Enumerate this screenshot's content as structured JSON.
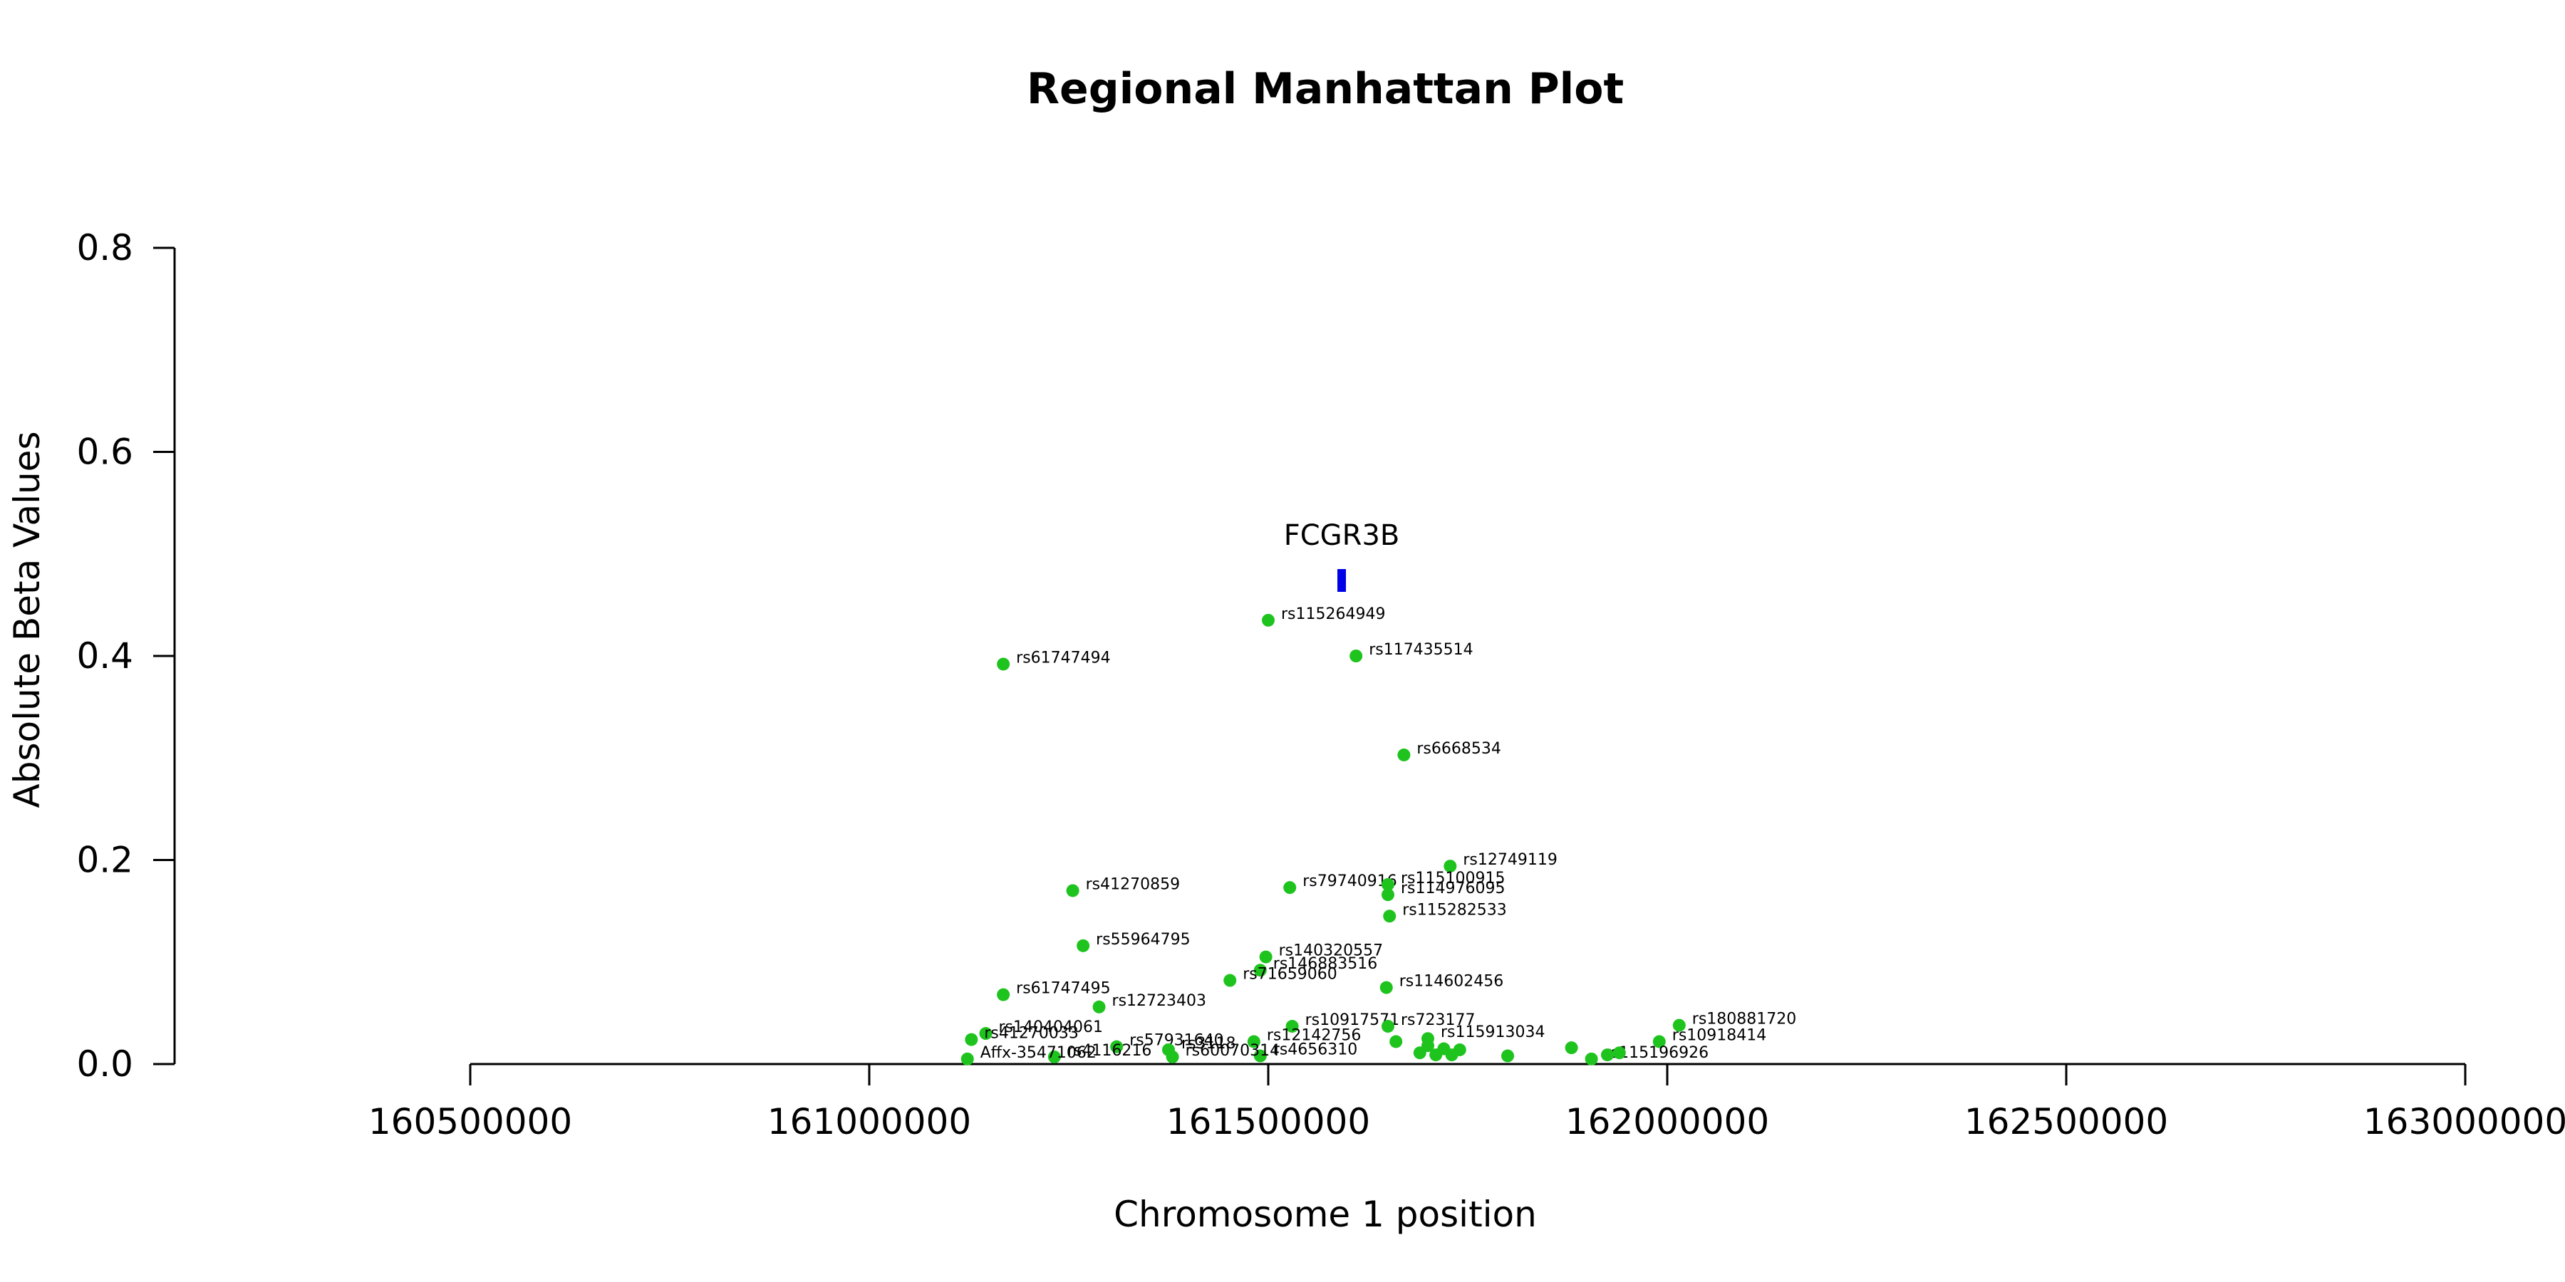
{
  "chart_data": {
    "type": "scatter",
    "title": "Regional Manhattan Plot",
    "xlabel": "Chromosome 1 position",
    "ylabel": "Absolute Beta Values",
    "xlim": [
      160500000,
      163000000
    ],
    "ylim": [
      0,
      0.8
    ],
    "x_ticks": [
      160500000,
      161000000,
      161500000,
      162000000,
      162500000,
      163000000
    ],
    "x_tick_labels": [
      "160500000",
      "161000000",
      "161500000",
      "162000000",
      "162500000",
      "163000000"
    ],
    "y_ticks": [
      0,
      0.2,
      0.4,
      0.6,
      0.8
    ],
    "y_tick_labels": [
      "0.0",
      "0.2",
      "0.4",
      "0.6",
      "0.8"
    ],
    "point_color": "#1ec31e",
    "gene_color": "#0000e6",
    "genes": [
      {
        "name": "FCGR3B",
        "x": 161592000,
        "y": 0.474
      }
    ],
    "points": [
      {
        "label": "rs115264949",
        "x": 161500000,
        "y": 0.435
      },
      {
        "label": "rs61747494",
        "x": 161168000,
        "y": 0.392
      },
      {
        "label": "rs117435514",
        "x": 161610000,
        "y": 0.4
      },
      {
        "label": "rs6668534",
        "x": 161670000,
        "y": 0.303
      },
      {
        "label": "rs12749119",
        "x": 161728000,
        "y": 0.194
      },
      {
        "label": "rs41270859",
        "x": 161255000,
        "y": 0.17
      },
      {
        "label": "rs79740916",
        "x": 161527000,
        "y": 0.173
      },
      {
        "label": "rs115100915",
        "x": 161650000,
        "y": 0.176
      },
      {
        "label": "rs114976095",
        "x": 161650000,
        "y": 0.166
      },
      {
        "label": "rs115282533",
        "x": 161652000,
        "y": 0.145
      },
      {
        "label": "rs55964795",
        "x": 161268000,
        "y": 0.116
      },
      {
        "label": "rs140320557",
        "x": 161497000,
        "y": 0.105
      },
      {
        "label": "rs146883516",
        "x": 161490000,
        "y": 0.092
      },
      {
        "label": "rs71659060",
        "x": 161452000,
        "y": 0.082
      },
      {
        "label": "rs114602456",
        "x": 161648000,
        "y": 0.075
      },
      {
        "label": "rs61747495",
        "x": 161168000,
        "y": 0.068
      },
      {
        "label": "rs12723403",
        "x": 161288000,
        "y": 0.056
      },
      {
        "label": "rs180881720",
        "x": 162015000,
        "y": 0.038
      },
      {
        "label": "rs10917571",
        "x": 161530000,
        "y": 0.037
      },
      {
        "label": "rs723177",
        "x": 161650000,
        "y": 0.037
      },
      {
        "label": "rs140404061",
        "x": 161146000,
        "y": 0.03
      },
      {
        "label": "rs41270033",
        "x": 161128000,
        "y": 0.024
      },
      {
        "label": "rs12142756",
        "x": 161482000,
        "y": 0.022
      },
      {
        "label": "rs10918414",
        "x": 161990000,
        "y": 0.022
      },
      {
        "label": "rs115913034",
        "x": 161700000,
        "y": 0.025
      },
      {
        "label": "",
        "x": 161660000,
        "y": 0.022
      },
      {
        "label": "",
        "x": 161700000,
        "y": 0.018
      },
      {
        "label": "",
        "x": 161720000,
        "y": 0.015
      },
      {
        "label": "",
        "x": 161740000,
        "y": 0.014
      },
      {
        "label": "",
        "x": 161880000,
        "y": 0.016
      },
      {
        "label": "rs57931640",
        "x": 161310000,
        "y": 0.017
      },
      {
        "label": "rs3118",
        "x": 161375000,
        "y": 0.014
      },
      {
        "label": "",
        "x": 161690000,
        "y": 0.011
      },
      {
        "label": "",
        "x": 161710000,
        "y": 0.009
      },
      {
        "label": "rs4656310",
        "x": 161490000,
        "y": 0.008
      },
      {
        "label": "rs60070314",
        "x": 161380000,
        "y": 0.007
      },
      {
        "label": "rs4116216",
        "x": 161232000,
        "y": 0.007
      },
      {
        "label": "",
        "x": 161800000,
        "y": 0.008
      },
      {
        "label": "",
        "x": 161730000,
        "y": 0.009
      },
      {
        "label": "rs115196926",
        "x": 161905000,
        "y": 0.005
      },
      {
        "label": "",
        "x": 161925000,
        "y": 0.009
      },
      {
        "label": "",
        "x": 161940000,
        "y": 0.011
      },
      {
        "label": "Affx-35471062",
        "x": 161123000,
        "y": 0.005
      }
    ]
  }
}
